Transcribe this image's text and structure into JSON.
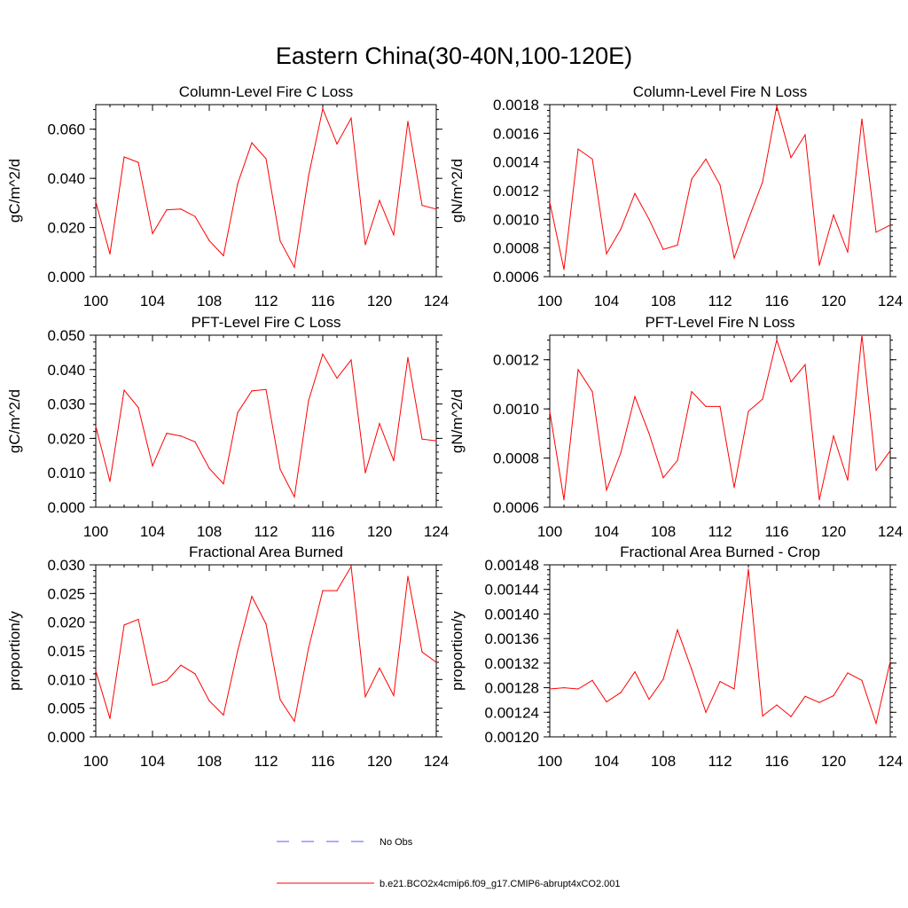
{
  "title": "Eastern China(30-40N,100-120E)",
  "colors": {
    "series": "#ff0000",
    "no_obs": "#5a5aff",
    "axis": "#000000"
  },
  "legend": {
    "no_obs_label": "No Obs",
    "series_label": "b.e21.BCO2x4cmip6.f09_g17.CMIP6-abrupt4xCO2.001"
  },
  "chart_data": [
    {
      "type": "line",
      "title": "Column-Level Fire C Loss",
      "ylabel": "gC/m^2/d",
      "xlim": [
        100,
        124
      ],
      "ylim": [
        0,
        0.07
      ],
      "xticks": [
        100,
        104,
        108,
        112,
        116,
        120,
        124
      ],
      "xtick_labels": [
        "100",
        "104",
        "108",
        "112",
        "116",
        "120",
        "124"
      ],
      "yticks": [
        0,
        0.02,
        0.04,
        0.06
      ],
      "ytick_labels": [
        "0.000",
        "0.020",
        "0.040",
        "0.060"
      ],
      "x": [
        100,
        101,
        102,
        103,
        104,
        105,
        106,
        107,
        108,
        109,
        110,
        111,
        112,
        113,
        114,
        115,
        116,
        117,
        118,
        119,
        120,
        121,
        122,
        123,
        124
      ],
      "values": [
        0.0305,
        0.0092,
        0.0487,
        0.0465,
        0.0175,
        0.0272,
        0.0275,
        0.0245,
        0.0147,
        0.0085,
        0.0378,
        0.0545,
        0.048,
        0.0145,
        0.0038,
        0.041,
        0.0683,
        0.054,
        0.0645,
        0.013,
        0.031,
        0.017,
        0.0632,
        0.029,
        0.0275
      ]
    },
    {
      "type": "line",
      "title": "Column-Level Fire N Loss",
      "ylabel": "gN/m^2/d",
      "xlim": [
        100,
        124
      ],
      "ylim": [
        0.0006,
        0.0018
      ],
      "xticks": [
        100,
        104,
        108,
        112,
        116,
        120,
        124
      ],
      "xtick_labels": [
        "100",
        "104",
        "108",
        "112",
        "116",
        "120",
        "124"
      ],
      "yticks": [
        0.0006,
        0.0008,
        0.001,
        0.0012,
        0.0014,
        0.0016,
        0.0018
      ],
      "ytick_labels": [
        "0.0006",
        "0.0008",
        "0.0010",
        "0.0012",
        "0.0014",
        "0.0016",
        "0.0018"
      ],
      "x": [
        100,
        101,
        102,
        103,
        104,
        105,
        106,
        107,
        108,
        109,
        110,
        111,
        112,
        113,
        114,
        115,
        116,
        117,
        118,
        119,
        120,
        121,
        122,
        123,
        124
      ],
      "values": [
        0.00112,
        0.00065,
        0.00149,
        0.00142,
        0.00076,
        0.00093,
        0.00118,
        0.001,
        0.00079,
        0.00082,
        0.00128,
        0.00142,
        0.00124,
        0.00073,
        0.001,
        0.00126,
        0.00179,
        0.00143,
        0.00159,
        0.00068,
        0.00103,
        0.00077,
        0.0017,
        0.00091,
        0.00096
      ]
    },
    {
      "type": "line",
      "title": "PFT-Level Fire C Loss",
      "ylabel": "gC/m^2/d",
      "xlim": [
        100,
        124
      ],
      "ylim": [
        0,
        0.05
      ],
      "xticks": [
        100,
        104,
        108,
        112,
        116,
        120,
        124
      ],
      "xtick_labels": [
        "100",
        "104",
        "108",
        "112",
        "116",
        "120",
        "124"
      ],
      "yticks": [
        0,
        0.01,
        0.02,
        0.03,
        0.04,
        0.05
      ],
      "ytick_labels": [
        "0.000",
        "0.010",
        "0.020",
        "0.030",
        "0.040",
        "0.050"
      ],
      "x": [
        100,
        101,
        102,
        103,
        104,
        105,
        106,
        107,
        108,
        109,
        110,
        111,
        112,
        113,
        114,
        115,
        116,
        117,
        118,
        119,
        120,
        121,
        122,
        123,
        124
      ],
      "values": [
        0.0235,
        0.0075,
        0.034,
        0.029,
        0.012,
        0.0215,
        0.0207,
        0.019,
        0.0113,
        0.0068,
        0.0275,
        0.0338,
        0.0342,
        0.011,
        0.003,
        0.031,
        0.0445,
        0.0375,
        0.0428,
        0.01,
        0.0243,
        0.0135,
        0.0435,
        0.0198,
        0.0193
      ]
    },
    {
      "type": "line",
      "title": "PFT-Level Fire N Loss",
      "ylabel": "gN/m^2/d",
      "xlim": [
        100,
        124
      ],
      "ylim": [
        0.0006,
        0.0013
      ],
      "xticks": [
        100,
        104,
        108,
        112,
        116,
        120,
        124
      ],
      "xtick_labels": [
        "100",
        "104",
        "108",
        "112",
        "116",
        "120",
        "124"
      ],
      "yticks": [
        0.0006,
        0.0008,
        0.001,
        0.0012
      ],
      "ytick_labels": [
        "0.0006",
        "0.0008",
        "0.0010",
        "0.0012"
      ],
      "x": [
        100,
        101,
        102,
        103,
        104,
        105,
        106,
        107,
        108,
        109,
        110,
        111,
        112,
        113,
        114,
        115,
        116,
        117,
        118,
        119,
        120,
        121,
        122,
        123,
        124
      ],
      "values": [
        0.00099,
        0.00063,
        0.00116,
        0.00107,
        0.00067,
        0.00082,
        0.00105,
        0.0009,
        0.00072,
        0.00079,
        0.00107,
        0.00101,
        0.00101,
        0.00068,
        0.00099,
        0.00104,
        0.00128,
        0.00111,
        0.00118,
        0.00063,
        0.00089,
        0.00071,
        0.0013,
        0.00075,
        0.00083
      ]
    },
    {
      "type": "line",
      "title": "Fractional Area Burned",
      "ylabel": "proportion/y",
      "xlim": [
        100,
        124
      ],
      "ylim": [
        0,
        0.03
      ],
      "xticks": [
        100,
        104,
        108,
        112,
        116,
        120,
        124
      ],
      "xtick_labels": [
        "100",
        "104",
        "108",
        "112",
        "116",
        "120",
        "124"
      ],
      "yticks": [
        0,
        0.005,
        0.01,
        0.015,
        0.02,
        0.025,
        0.03
      ],
      "ytick_labels": [
        "0.000",
        "0.005",
        "0.010",
        "0.015",
        "0.020",
        "0.025",
        "0.030"
      ],
      "x": [
        100,
        101,
        102,
        103,
        104,
        105,
        106,
        107,
        108,
        109,
        110,
        111,
        112,
        113,
        114,
        115,
        116,
        117,
        118,
        119,
        120,
        121,
        122,
        123,
        124
      ],
      "values": [
        0.0115,
        0.0032,
        0.0195,
        0.0205,
        0.009,
        0.0098,
        0.0125,
        0.011,
        0.0063,
        0.0038,
        0.015,
        0.0245,
        0.0197,
        0.0065,
        0.0027,
        0.0155,
        0.0255,
        0.0255,
        0.0297,
        0.007,
        0.012,
        0.0072,
        0.028,
        0.0148,
        0.013
      ]
    },
    {
      "type": "line",
      "title": "Fractional Area Burned - Crop",
      "ylabel": "proportion/y",
      "xlim": [
        100,
        124
      ],
      "ylim": [
        0.0012,
        0.00148
      ],
      "xticks": [
        100,
        104,
        108,
        112,
        116,
        120,
        124
      ],
      "xtick_labels": [
        "100",
        "104",
        "108",
        "112",
        "116",
        "120",
        "124"
      ],
      "yticks": [
        0.0012,
        0.00124,
        0.00128,
        0.00132,
        0.00136,
        0.0014,
        0.00144,
        0.00148
      ],
      "ytick_labels": [
        "0.00120",
        "0.00124",
        "0.00128",
        "0.00132",
        "0.00136",
        "0.00140",
        "0.00144",
        "0.00148"
      ],
      "x": [
        100,
        101,
        102,
        103,
        104,
        105,
        106,
        107,
        108,
        109,
        110,
        111,
        112,
        113,
        114,
        115,
        116,
        117,
        118,
        119,
        120,
        121,
        122,
        123,
        124
      ],
      "values": [
        0.001278,
        0.00128,
        0.001278,
        0.001292,
        0.001257,
        0.001272,
        0.001306,
        0.001261,
        0.001294,
        0.001374,
        0.00131,
        0.00124,
        0.00129,
        0.001278,
        0.001473,
        0.001234,
        0.001252,
        0.001233,
        0.001266,
        0.001256,
        0.001267,
        0.001304,
        0.001292,
        0.001222,
        0.001323
      ]
    }
  ]
}
